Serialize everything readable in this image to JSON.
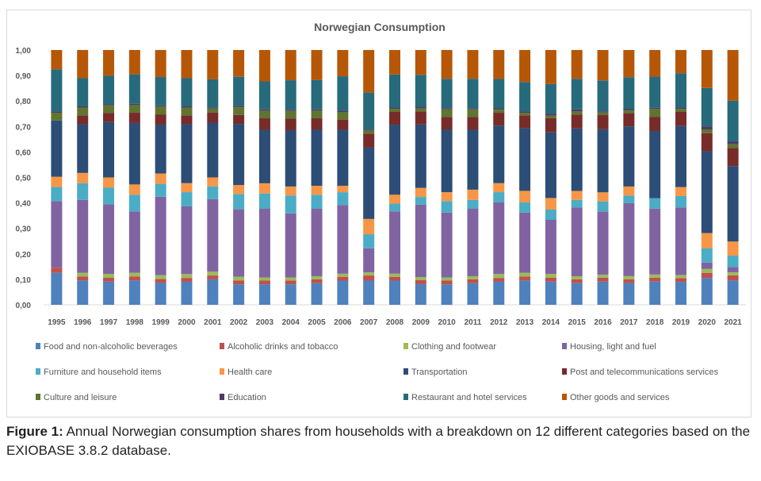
{
  "chart_data": {
    "type": "bar",
    "stacked": true,
    "title": "Norwegian Consumption",
    "xlabel": "",
    "ylabel": "",
    "ylim": [
      0,
      1.0
    ],
    "yticks": [
      "0,00",
      "0,10",
      "0,20",
      "0,30",
      "0,40",
      "0,50",
      "0,60",
      "0,70",
      "0,80",
      "0,90",
      "1,00"
    ],
    "grid": false,
    "legend_position": "bottom",
    "categories": [
      "1995",
      "1996",
      "1997",
      "1998",
      "1999",
      "2000",
      "2001",
      "2002",
      "2003",
      "2004",
      "2005",
      "2006",
      "2007",
      "2008",
      "2009",
      "2010",
      "2011",
      "2012",
      "2013",
      "2014",
      "2015",
      "2016",
      "2017",
      "2018",
      "2019",
      "2020",
      "2021"
    ],
    "series": [
      {
        "name": "Food and non-alcoholic beverages",
        "color": "#4F81BD",
        "values": [
          0.125,
          0.095,
          0.09,
          0.095,
          0.085,
          0.09,
          0.1,
          0.08,
          0.08,
          0.08,
          0.085,
          0.095,
          0.095,
          0.095,
          0.08,
          0.08,
          0.085,
          0.09,
          0.095,
          0.09,
          0.085,
          0.09,
          0.085,
          0.09,
          0.09,
          0.105,
          0.095
        ]
      },
      {
        "name": "Alcoholic drinks and tobacco",
        "color": "#C0504D",
        "values": [
          0.02,
          0.015,
          0.015,
          0.015,
          0.015,
          0.015,
          0.015,
          0.015,
          0.015,
          0.015,
          0.015,
          0.015,
          0.02,
          0.015,
          0.015,
          0.015,
          0.015,
          0.015,
          0.015,
          0.015,
          0.015,
          0.015,
          0.015,
          0.015,
          0.015,
          0.02,
          0.02
        ]
      },
      {
        "name": "Clothing and footwear",
        "color": "#9BBB59",
        "values": [
          0.0,
          0.015,
          0.015,
          0.015,
          0.015,
          0.015,
          0.015,
          0.015,
          0.012,
          0.012,
          0.012,
          0.012,
          0.012,
          0.012,
          0.012,
          0.012,
          0.012,
          0.015,
          0.015,
          0.015,
          0.012,
          0.012,
          0.012,
          0.012,
          0.012,
          0.015,
          0.012
        ]
      },
      {
        "name": "Housing, light and fuel",
        "color": "#8064A2",
        "values": [
          0.26,
          0.285,
          0.27,
          0.24,
          0.305,
          0.265,
          0.285,
          0.265,
          0.27,
          0.25,
          0.265,
          0.27,
          0.095,
          0.245,
          0.28,
          0.255,
          0.265,
          0.28,
          0.235,
          0.21,
          0.27,
          0.245,
          0.285,
          0.255,
          0.265,
          0.025,
          0.02
        ]
      },
      {
        "name": "Furniture and household items",
        "color": "#4BACC6",
        "values": [
          0.055,
          0.065,
          0.065,
          0.065,
          0.05,
          0.055,
          0.05,
          0.06,
          0.06,
          0.07,
          0.055,
          0.05,
          0.055,
          0.03,
          0.03,
          0.045,
          0.035,
          0.04,
          0.04,
          0.04,
          0.03,
          0.04,
          0.03,
          0.04,
          0.045,
          0.055,
          0.045
        ]
      },
      {
        "name": "Health care",
        "color": "#F79646",
        "values": [
          0.04,
          0.04,
          0.04,
          0.04,
          0.04,
          0.035,
          0.035,
          0.035,
          0.04,
          0.035,
          0.035,
          0.025,
          0.06,
          0.035,
          0.035,
          0.035,
          0.04,
          0.035,
          0.045,
          0.045,
          0.035,
          0.035,
          0.035,
          0.0,
          0.035,
          0.06,
          0.055
        ]
      },
      {
        "name": "Transportation",
        "color": "#2C4D75",
        "values": [
          0.22,
          0.19,
          0.215,
          0.24,
          0.19,
          0.23,
          0.215,
          0.24,
          0.21,
          0.22,
          0.22,
          0.22,
          0.28,
          0.275,
          0.245,
          0.245,
          0.235,
          0.225,
          0.245,
          0.255,
          0.245,
          0.245,
          0.235,
          0.26,
          0.24,
          0.32,
          0.295
        ]
      },
      {
        "name": "Post and telecommunications services",
        "color": "#772C2A",
        "values": [
          0.0,
          0.035,
          0.035,
          0.04,
          0.04,
          0.035,
          0.04,
          0.035,
          0.045,
          0.045,
          0.045,
          0.04,
          0.055,
          0.05,
          0.05,
          0.05,
          0.05,
          0.05,
          0.05,
          0.055,
          0.055,
          0.055,
          0.05,
          0.055,
          0.055,
          0.07,
          0.07
        ]
      },
      {
        "name": "Culture and leisure",
        "color": "#5F7530",
        "values": [
          0.03,
          0.03,
          0.03,
          0.03,
          0.03,
          0.03,
          0.015,
          0.03,
          0.03,
          0.03,
          0.03,
          0.03,
          0.012,
          0.012,
          0.012,
          0.03,
          0.03,
          0.012,
          0.01,
          0.01,
          0.012,
          0.01,
          0.012,
          0.03,
          0.012,
          0.015,
          0.015
        ]
      },
      {
        "name": "Education",
        "color": "#4D3B62",
        "values": [
          0.005,
          0.005,
          0.005,
          0.005,
          0.005,
          0.005,
          0.005,
          0.005,
          0.005,
          0.005,
          0.005,
          0.005,
          0.004,
          0.005,
          0.005,
          0.005,
          0.005,
          0.005,
          0.005,
          0.008,
          0.008,
          0.005,
          0.005,
          0.005,
          0.005,
          0.012,
          0.01
        ]
      },
      {
        "name": "Restaurant and hotel services",
        "color": "#276A7C",
        "values": [
          0.165,
          0.11,
          0.11,
          0.115,
          0.11,
          0.11,
          0.11,
          0.115,
          0.11,
          0.115,
          0.115,
          0.135,
          0.145,
          0.13,
          0.125,
          0.115,
          0.115,
          0.115,
          0.115,
          0.115,
          0.12,
          0.12,
          0.125,
          0.12,
          0.135,
          0.15,
          0.16
        ]
      },
      {
        "name": "Other goods and services",
        "color": "#B65708",
        "values": [
          0.075,
          0.11,
          0.1,
          0.095,
          0.105,
          0.11,
          0.115,
          0.105,
          0.123,
          0.118,
          0.118,
          0.103,
          0.167,
          0.096,
          0.096,
          0.113,
          0.113,
          0.113,
          0.125,
          0.132,
          0.113,
          0.118,
          0.106,
          0.103,
          0.091,
          0.148,
          0.198
        ]
      }
    ]
  },
  "caption": {
    "label": "Figure 1:",
    "text": " Annual Norwegian consumption shares from households with a breakdown on 12 different categories based on the EXIOBASE 3.8.2 database."
  }
}
